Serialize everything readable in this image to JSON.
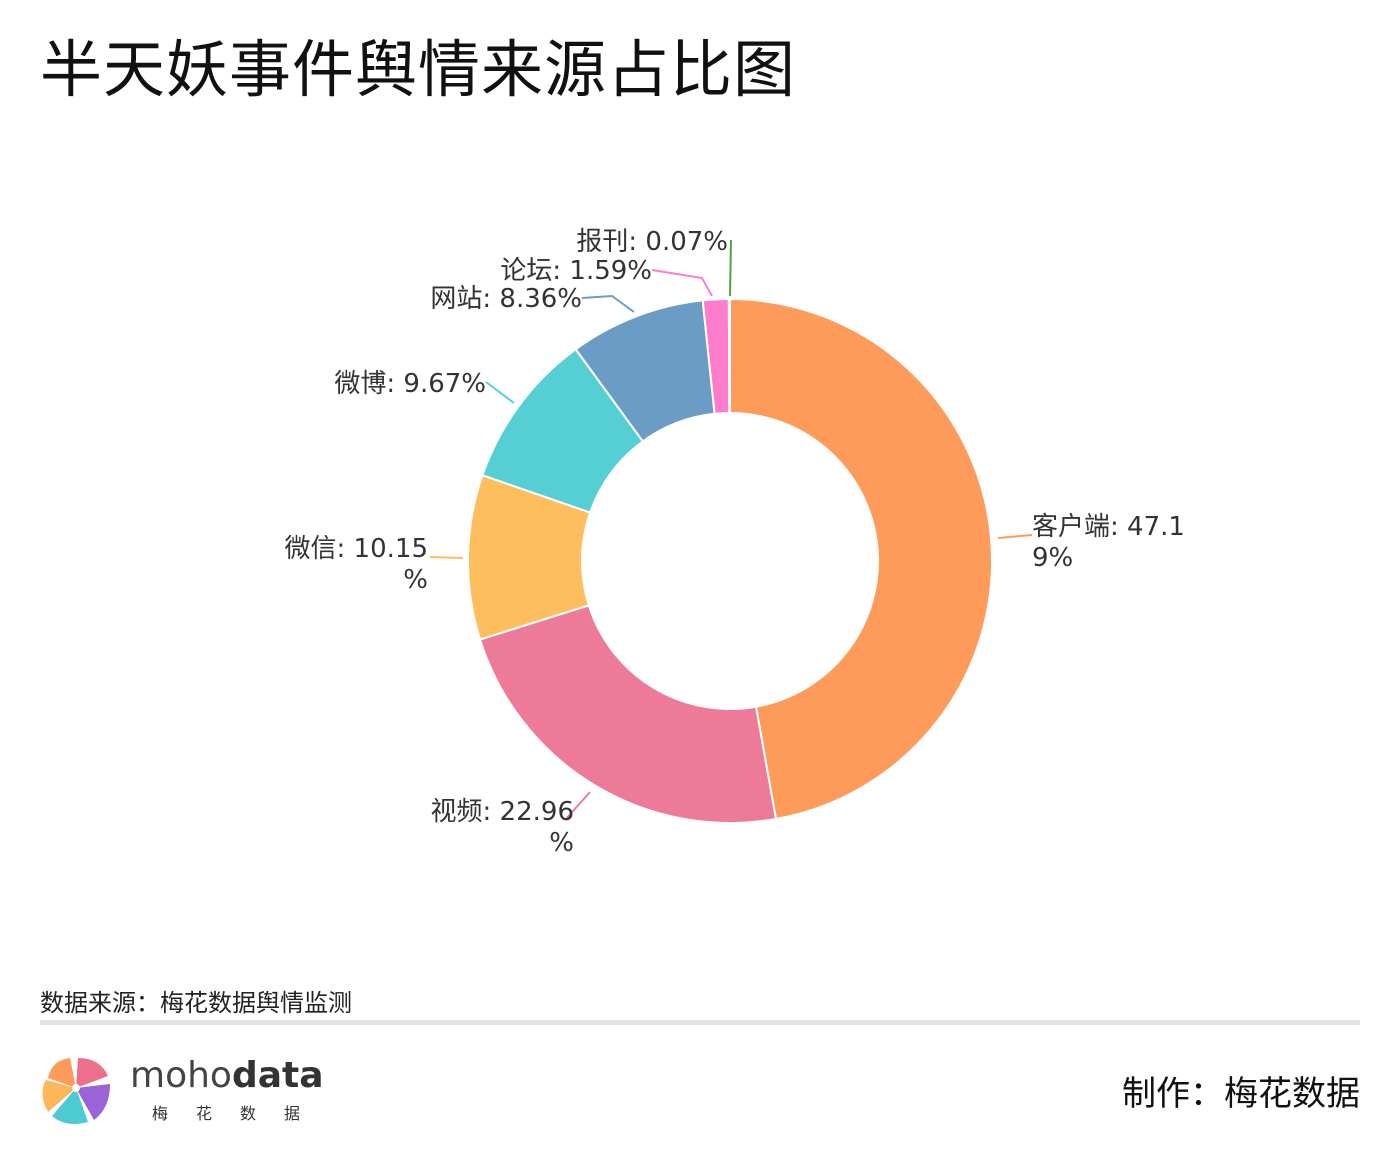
{
  "header": {
    "title": "半天妖事件舆情来源占比图"
  },
  "chart_data": {
    "type": "pie",
    "donut": true,
    "title": "半天妖事件舆情来源占比图",
    "slices": [
      {
        "label": "客户端",
        "value": 47.19,
        "text_lines": [
          "客户端: 47.1",
          "9%"
        ],
        "color": "#fe9b5a"
      },
      {
        "label": "视频",
        "value": 22.96,
        "text_lines": [
          "视频: 22.96",
          "%"
        ],
        "color": "#ec7a98"
      },
      {
        "label": "微信",
        "value": 10.15,
        "text_lines": [
          "微信: 10.15",
          "%"
        ],
        "color": "#febe5e"
      },
      {
        "label": "微博",
        "value": 9.67,
        "text_lines": [
          "微博: 9.67%"
        ],
        "color": "#56cfd4"
      },
      {
        "label": "网站",
        "value": 8.36,
        "text_lines": [
          "网站: 8.36%"
        ],
        "color": "#6a9cc6"
      },
      {
        "label": "论坛",
        "value": 1.59,
        "text_lines": [
          "论坛: 1.59%"
        ],
        "color": "#fd7ccb"
      },
      {
        "label": "报刊",
        "value": 0.07,
        "text_lines": [
          "报刊: 0.07%"
        ],
        "color": "#5e9c45"
      }
    ]
  },
  "footer": {
    "source": "数据来源：梅花数据舆情监测",
    "brand_en_light": "moho",
    "brand_en_bold": "data",
    "brand_cn": "梅花数据",
    "credit": "制作：梅花数据"
  }
}
